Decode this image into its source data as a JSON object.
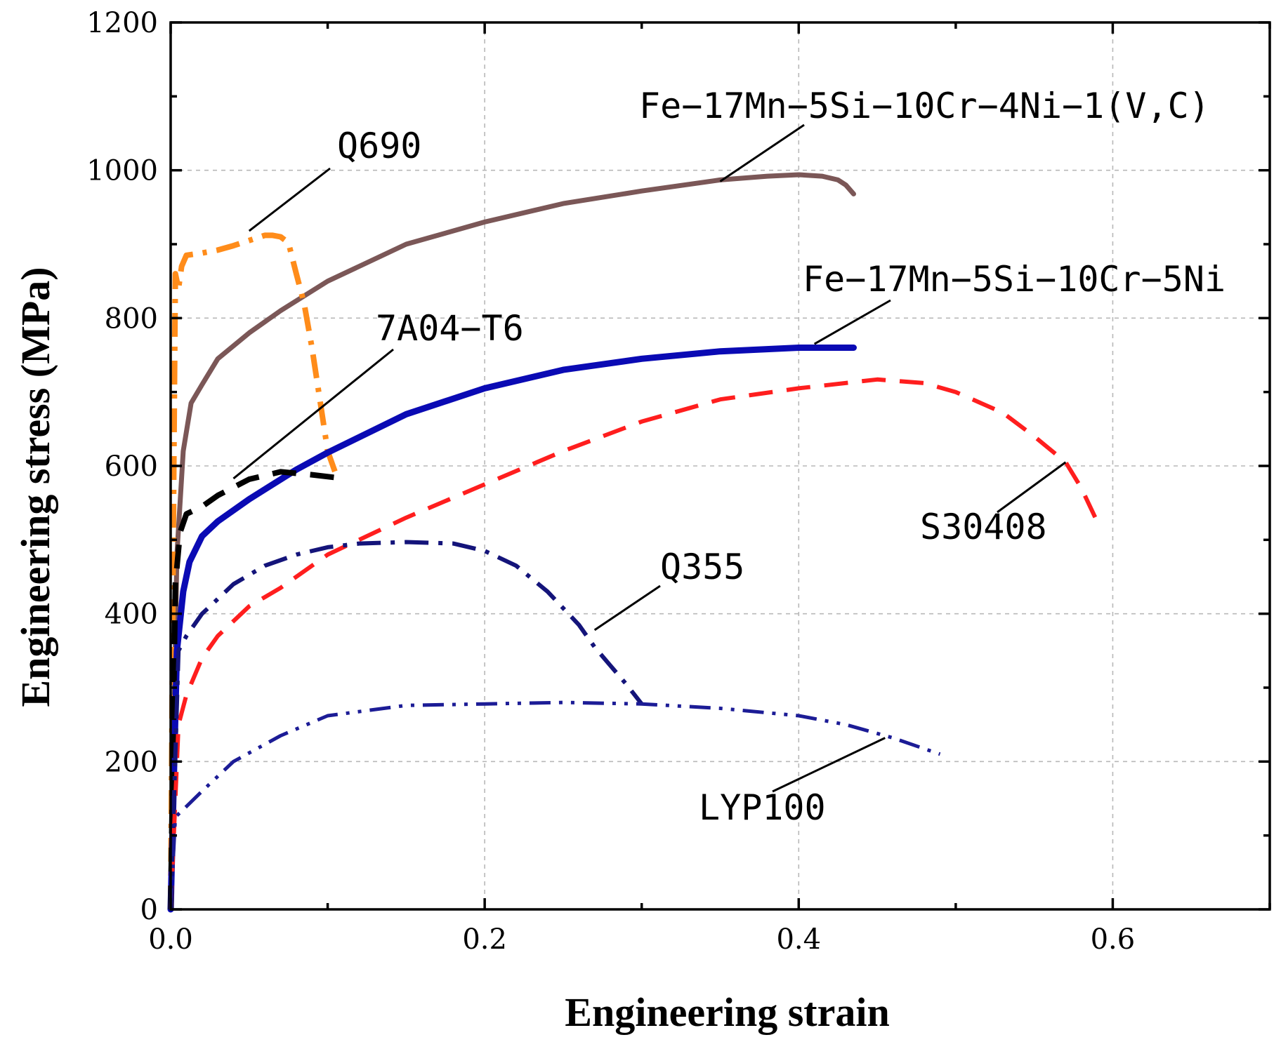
{
  "chart_data": {
    "type": "line",
    "xlabel": "Engineering strain",
    "ylabel": "Engineering stress (MPa)",
    "xlim": [
      0,
      0.7
    ],
    "ylim": [
      0,
      1200
    ],
    "xticks": [
      0.0,
      0.2,
      0.4,
      0.6
    ],
    "xtick_labels": [
      "0.0",
      "0.2",
      "0.4",
      "0.6"
    ],
    "yticks": [
      0,
      200,
      400,
      600,
      800,
      1000,
      1200
    ],
    "ytick_labels": [
      "0",
      "200",
      "400",
      "600",
      "800",
      "1000",
      "1200"
    ],
    "grid": true,
    "series": [
      {
        "id": "fe17-v-c",
        "name": "Fe-17Mn-5Si-10Cr-4Ni-1(V,C)",
        "label": "Fe−17Mn−5Si−10Cr−4Ni−1(V,C)",
        "color": "#7b5757",
        "style": "solid",
        "x": [
          0,
          0.004,
          0.008,
          0.013,
          0.02,
          0.03,
          0.05,
          0.07,
          0.1,
          0.15,
          0.2,
          0.25,
          0.3,
          0.35,
          0.38,
          0.4,
          0.415,
          0.425,
          0.43,
          0.435
        ],
        "y": [
          0,
          480,
          620,
          685,
          710,
          745,
          780,
          810,
          850,
          900,
          930,
          955,
          972,
          987,
          992,
          994,
          992,
          987,
          980,
          968
        ],
        "annotation": {
          "x": 0.35,
          "y": 985
        }
      },
      {
        "id": "q690",
        "name": "Q690",
        "label": "Q690",
        "color": "#ff8c1a",
        "style": "dashdot",
        "x": [
          0,
          0.002,
          0.003,
          0.005,
          0.007,
          0.01,
          0.02,
          0.03,
          0.04,
          0.05,
          0.06,
          0.065,
          0.07,
          0.075,
          0.08,
          0.085,
          0.09,
          0.095,
          0.1,
          0.105
        ],
        "y": [
          0,
          600,
          860,
          840,
          870,
          885,
          888,
          892,
          898,
          905,
          912,
          912,
          910,
          902,
          860,
          820,
          760,
          690,
          620,
          590
        ],
        "annotation": {
          "x": 0.05,
          "y": 918
        }
      },
      {
        "id": "fe17-5ni",
        "name": "Fe-17Mn-5Si-10Cr-5Ni",
        "label": "Fe−17Mn−5Si−10Cr−5Ni",
        "color": "#0a0ab4",
        "style": "solid",
        "x": [
          0,
          0.004,
          0.008,
          0.012,
          0.02,
          0.03,
          0.05,
          0.08,
          0.1,
          0.15,
          0.2,
          0.25,
          0.3,
          0.35,
          0.4,
          0.435
        ],
        "y": [
          0,
          350,
          430,
          470,
          505,
          525,
          555,
          595,
          618,
          670,
          705,
          730,
          745,
          755,
          760,
          760
        ],
        "annotation": {
          "x": 0.41,
          "y": 765
        }
      },
      {
        "id": "7a04-t6",
        "name": "7A04-T6",
        "label": "7A04−T6",
        "color": "#000000",
        "style": "dashed",
        "x": [
          0,
          0.003,
          0.006,
          0.01,
          0.02,
          0.03,
          0.05,
          0.07,
          0.09,
          0.11
        ],
        "y": [
          0,
          440,
          510,
          535,
          545,
          560,
          582,
          592,
          588,
          583
        ],
        "annotation": {
          "x": 0.04,
          "y": 583
        }
      },
      {
        "id": "s30408",
        "name": "S30408",
        "label": "S30408",
        "color": "#ff1e1e",
        "style": "dashed",
        "x": [
          0,
          0.005,
          0.01,
          0.02,
          0.03,
          0.05,
          0.07,
          0.1,
          0.15,
          0.2,
          0.25,
          0.3,
          0.35,
          0.4,
          0.45,
          0.48,
          0.5,
          0.53,
          0.55,
          0.57,
          0.58,
          0.59
        ],
        "y": [
          0,
          250,
          290,
          340,
          370,
          410,
          435,
          480,
          530,
          575,
          620,
          660,
          690,
          705,
          717,
          712,
          700,
          672,
          640,
          605,
          570,
          525
        ],
        "annotation": {
          "x": 0.57,
          "y": 605
        }
      },
      {
        "id": "q355",
        "name": "Q355",
        "label": "Q355",
        "color": "#14147a",
        "style": "dashdot",
        "x": [
          0,
          0.005,
          0.01,
          0.02,
          0.04,
          0.06,
          0.08,
          0.1,
          0.12,
          0.15,
          0.18,
          0.2,
          0.22,
          0.24,
          0.26,
          0.27,
          0.28,
          0.29,
          0.3
        ],
        "y": [
          0,
          350,
          370,
          400,
          440,
          465,
          480,
          490,
          495,
          497,
          495,
          485,
          465,
          430,
          385,
          355,
          330,
          305,
          278
        ],
        "annotation": {
          "x": 0.27,
          "y": 378
        }
      },
      {
        "id": "lyp100",
        "name": "LYP100",
        "label": "LYP100",
        "color": "#1c1c96",
        "style": "dashdotdot",
        "x": [
          0,
          0.003,
          0.008,
          0.02,
          0.04,
          0.07,
          0.1,
          0.15,
          0.2,
          0.25,
          0.3,
          0.35,
          0.4,
          0.43,
          0.46,
          0.49
        ],
        "y": [
          0,
          125,
          135,
          160,
          200,
          235,
          262,
          276,
          278,
          280,
          278,
          272,
          262,
          250,
          232,
          210
        ],
        "annotation": {
          "x": 0.455,
          "y": 232
        }
      }
    ]
  }
}
